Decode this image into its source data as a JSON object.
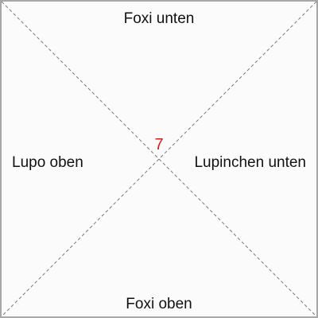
{
  "labels": {
    "top": "Foxi unten",
    "left": "Lupo oben",
    "right": "Lupinchen unten",
    "bottom": "Foxi oben"
  },
  "center_marker": {
    "value": "7",
    "color": "#e01b1b"
  },
  "colors": {
    "background": "#fbfbfb",
    "border": "#a7a7a7",
    "diagonal_lines": "#777777",
    "text": "#111111"
  },
  "diagonals": {
    "style": "dashed"
  }
}
